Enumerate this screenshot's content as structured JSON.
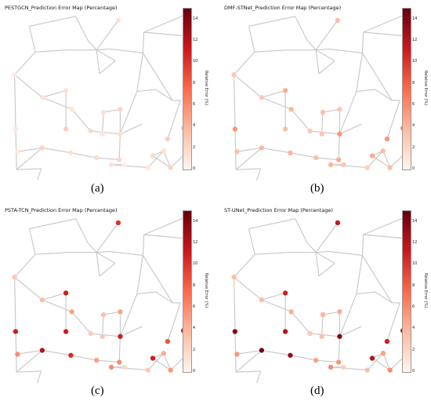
{
  "colorbar": {
    "ticks": [
      "0",
      "2",
      "4",
      "6",
      "8",
      "10",
      "12",
      "14"
    ],
    "label": "Relative Error (%)",
    "vmax": 15
  },
  "chart_data": [
    {
      "panel": "a",
      "type": "scatter",
      "title": "PESTGCN_Prediction Error Map (Percentage)",
      "caption": "(a)",
      "values": [
        1.2,
        0.8,
        1.5,
        2.5,
        1.0,
        1.2,
        1.8,
        0.9,
        1.5,
        2.2,
        1.3,
        1.0,
        0.8,
        2.0,
        1.5,
        1.6,
        2.0,
        2.5,
        3.0,
        1.3,
        1.8,
        2.2,
        3.0,
        0.8,
        1.2,
        0.5
      ]
    },
    {
      "panel": "b",
      "type": "scatter",
      "title": "DMF-STNet_Prediction Error Map (Percentage)",
      "caption": "(b)",
      "values": [
        3.5,
        3.0,
        4.5,
        3.5,
        4.0,
        3.0,
        2.8,
        3.2,
        5.5,
        3.0,
        3.5,
        5.5,
        3.5,
        4.0,
        4.0,
        3.5,
        4.5,
        5.5,
        6.0,
        3.5,
        4.5,
        3.5,
        3.0,
        2.5,
        4.0,
        3.0
      ]
    },
    {
      "panel": "c",
      "type": "scatter",
      "title": "PSTA-TCN_Prediction Error Map (Percentage)",
      "caption": "(c)",
      "values": [
        10.0,
        3.0,
        11.0,
        11.0,
        5.0,
        3.5,
        2.8,
        3.0,
        11.0,
        5.0,
        3.5,
        11.0,
        6.0,
        12.0,
        10.5,
        5.0,
        6.0,
        8.5,
        11.0,
        4.5,
        11.0,
        5.5,
        10.0,
        3.0,
        6.0,
        2.0
      ]
    },
    {
      "panel": "d",
      "type": "scatter",
      "title": "ST-UNet_Prediction Error Map (Percentage)",
      "caption": "(d)",
      "values": [
        11.5,
        3.5,
        11.0,
        12.0,
        4.5,
        3.5,
        2.8,
        3.5,
        14.0,
        4.5,
        4.0,
        14.0,
        5.5,
        14.5,
        13.0,
        5.0,
        5.5,
        11.0,
        11.0,
        5.0,
        12.0,
        6.0,
        11.0,
        3.5,
        6.0,
        2.5
      ]
    }
  ]
}
